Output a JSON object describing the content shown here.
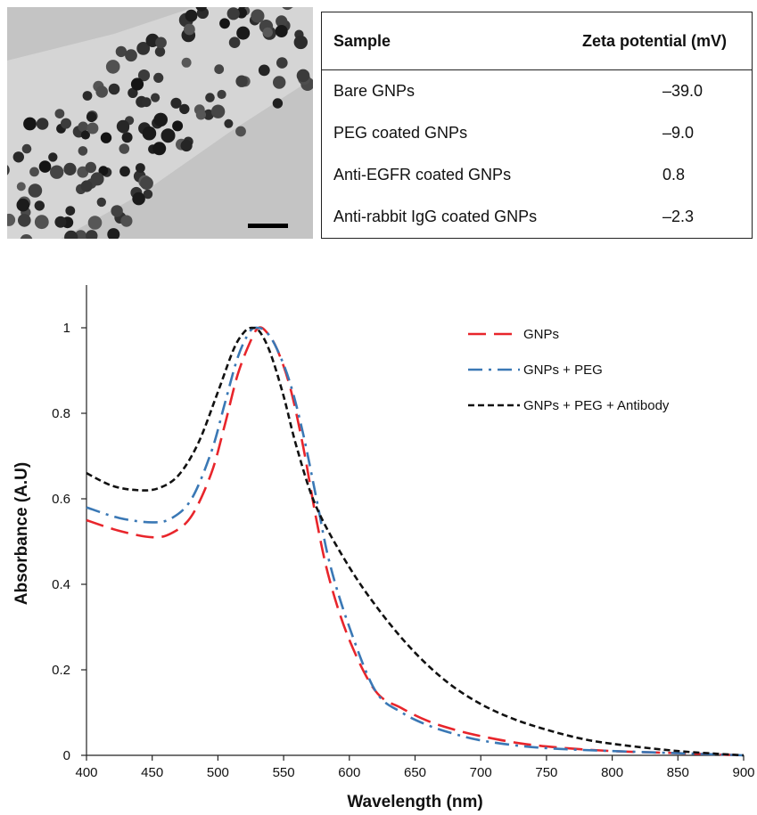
{
  "zeta_table": {
    "headers": [
      "Sample",
      "Zeta potential (mV)"
    ],
    "rows": [
      {
        "sample": "Bare GNPs",
        "zeta": "–39.0"
      },
      {
        "sample": "PEG coated GNPs",
        "zeta": "–9.0"
      },
      {
        "sample": "Anti-EGFR coated GNPs",
        "zeta": "0.8"
      },
      {
        "sample": "Anti-rabbit IgG coated GNPs",
        "zeta": "–2.3"
      }
    ]
  },
  "chart_data": {
    "type": "line",
    "title": "",
    "xlabel": "Wavelength (nm)",
    "ylabel": "Absorbance (A.U)",
    "xlim": [
      400,
      900
    ],
    "ylim": [
      0,
      1.1
    ],
    "x_ticks": [
      400,
      450,
      500,
      550,
      600,
      650,
      700,
      750,
      800,
      850,
      900
    ],
    "y_ticks": [
      0,
      0.2,
      0.4,
      0.6,
      0.8,
      1
    ],
    "grid": false,
    "legend_position": "top-right",
    "series": [
      {
        "name": "GNPs",
        "color": "#e8252b",
        "dash": "long-dash",
        "x": [
          400,
          425,
          450,
          465,
          480,
          495,
          505,
          515,
          525,
          531,
          537,
          545,
          555,
          565,
          575,
          585,
          600,
          620,
          640,
          660,
          680,
          700,
          730,
          760,
          800,
          850,
          900
        ],
        "y": [
          0.55,
          0.525,
          0.51,
          0.52,
          0.56,
          0.66,
          0.77,
          0.89,
          0.97,
          1.0,
          0.99,
          0.95,
          0.86,
          0.72,
          0.55,
          0.41,
          0.27,
          0.15,
          0.11,
          0.08,
          0.06,
          0.045,
          0.028,
          0.018,
          0.01,
          0.005,
          0.0
        ]
      },
      {
        "name": "GNPs + PEG",
        "color": "#3a78b5",
        "dash": "dash-dot",
        "x": [
          400,
          425,
          450,
          465,
          480,
          495,
          505,
          515,
          524,
          530,
          537,
          545,
          555,
          565,
          575,
          585,
          600,
          620,
          640,
          660,
          680,
          700,
          730,
          760,
          800,
          850,
          900
        ],
        "y": [
          0.58,
          0.555,
          0.545,
          0.555,
          0.6,
          0.71,
          0.82,
          0.93,
          0.99,
          1.0,
          0.99,
          0.95,
          0.87,
          0.75,
          0.6,
          0.45,
          0.3,
          0.15,
          0.1,
          0.07,
          0.05,
          0.035,
          0.022,
          0.015,
          0.01,
          0.005,
          0.0
        ]
      },
      {
        "name": "GNPs + PEG + Antibody",
        "color": "#111111",
        "dash": "short-dash",
        "x": [
          400,
          420,
          440,
          455,
          470,
          485,
          500,
          512,
          520,
          526,
          532,
          540,
          550,
          560,
          575,
          600,
          625,
          650,
          675,
          700,
          725,
          750,
          775,
          800,
          850,
          900
        ],
        "y": [
          0.66,
          0.63,
          0.62,
          0.625,
          0.655,
          0.73,
          0.85,
          0.95,
          0.99,
          1.0,
          0.99,
          0.94,
          0.84,
          0.72,
          0.58,
          0.44,
          0.33,
          0.24,
          0.17,
          0.12,
          0.085,
          0.06,
          0.04,
          0.027,
          0.01,
          0.0
        ]
      }
    ]
  }
}
